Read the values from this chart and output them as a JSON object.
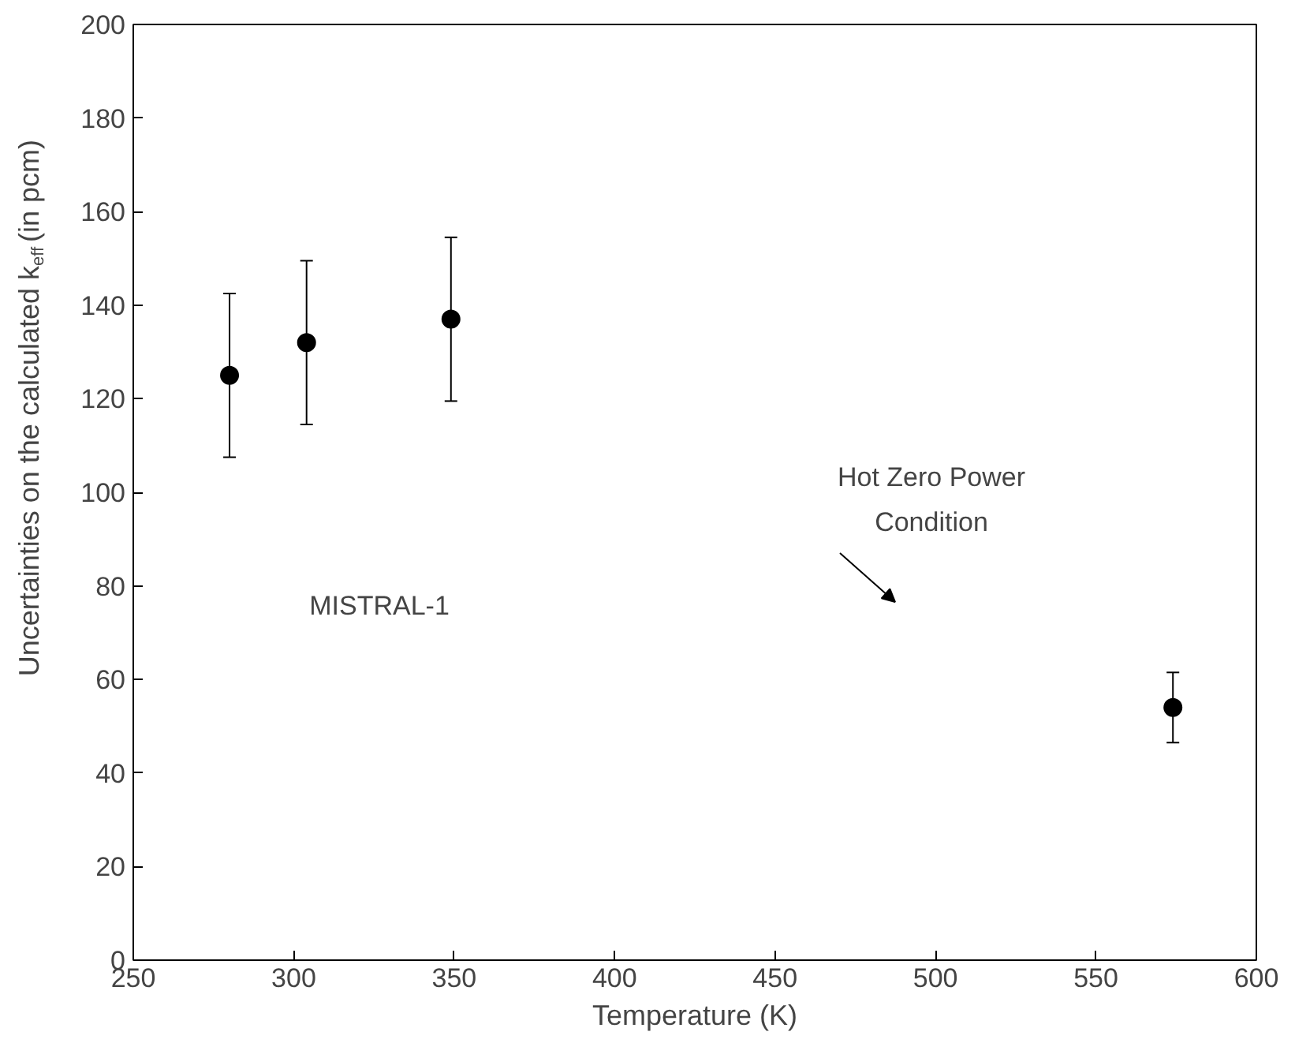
{
  "chart_data": {
    "type": "scatter",
    "xlabel": "Temperature (K)",
    "ylabel": "Uncertainties on the calculated k$_{eff}$ (in pcm)",
    "x": [
      280,
      304,
      349,
      574
    ],
    "series": [
      {
        "color": "#000000",
        "values": [
          125,
          132,
          137,
          54
        ],
        "errors": [
          17.5,
          17.5,
          17.5,
          7.5
        ]
      }
    ],
    "xlim": [
      250,
      600
    ],
    "xticks": [
      250,
      300,
      350,
      400,
      450,
      500,
      550,
      600
    ],
    "ylim": [
      0,
      200
    ],
    "yticks": [
      0,
      20,
      40,
      60,
      80,
      100,
      120,
      140,
      160,
      180,
      200
    ],
    "grid": false,
    "marker": "circle",
    "annotations": [
      "MISTRAL-1",
      "Hot Zero Power\nCondition"
    ]
  }
}
